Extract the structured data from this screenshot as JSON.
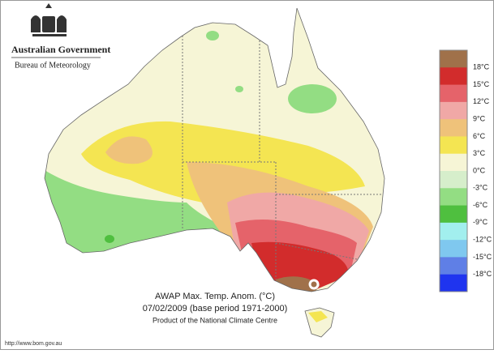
{
  "header": {
    "title": "Australian Government",
    "subtitle": "Bureau of Meteorology"
  },
  "legend": {
    "colors": [
      "#a0714a",
      "#d22c2c",
      "#e5636a",
      "#f0a8a6",
      "#efc27a",
      "#f4e552",
      "#f6f5d6",
      "#d6eecb",
      "#93dd83",
      "#4fbf3f",
      "#a2efee",
      "#7fc8ef",
      "#5f7fe6",
      "#1f34ef"
    ],
    "labels": [
      "18°C",
      "15°C",
      "12°C",
      "9°C",
      "6°C",
      "3°C",
      "0°C",
      "-3°C",
      "-6°C",
      "-9°C",
      "-12°C",
      "-15°C",
      "-18°C"
    ]
  },
  "caption": {
    "title": "AWAP Max. Temp. Anom. (°C)",
    "date": "07/02/2009 (base period 1971-2000)",
    "credit": "Product of the National Climate Centre"
  },
  "footer": {
    "url": "http://www.bom.gov.au"
  }
}
